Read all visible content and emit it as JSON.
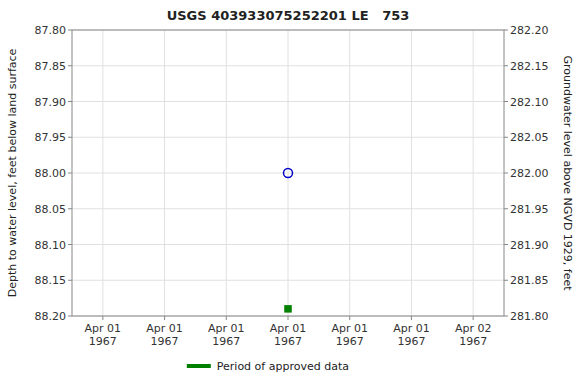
{
  "chart_data": {
    "type": "scatter",
    "title": "USGS 403933075252201 LE   753",
    "ylabel": "Depth to water level, feet below land surface",
    "y2label": "Groundwater level above NGVD 1929, feet",
    "categories": [
      "Apr 01\n1967",
      "Apr 01\n1967",
      "Apr 01\n1967",
      "Apr 01\n1967",
      "Apr 01\n1967",
      "Apr 01\n1967",
      "Apr 02\n1967"
    ],
    "series": [
      {
        "color": "#0000cc",
        "marker": "open-circle",
        "values": [
          null,
          null,
          null,
          88.0,
          null,
          null,
          null
        ]
      },
      {
        "name": "Period of approved data",
        "color": "#008000",
        "marker": "square",
        "values": [
          null,
          null,
          null,
          88.19,
          null,
          null,
          null
        ]
      }
    ],
    "ylim": [
      88.2,
      87.8
    ],
    "yticks": [
      {
        "value": 87.8,
        "label": "87.80"
      },
      87.85,
      {
        "value": 87.9,
        "label": "87.90"
      },
      87.95,
      {
        "value": 88.0,
        "label": "88.00"
      },
      88.05,
      {
        "value": 88.1,
        "label": "88.10"
      },
      88.15,
      {
        "value": 88.2,
        "label": "88.20"
      }
    ],
    "y2lim": [
      281.8,
      282.2
    ],
    "y2ticks": [
      {
        "value": 282.2,
        "label": "282.20"
      },
      282.15,
      {
        "value": 282.1,
        "label": "282.10"
      },
      282.05,
      {
        "value": 282.0,
        "label": "282.00"
      },
      281.95,
      {
        "value": 281.9,
        "label": "281.90"
      },
      281.85,
      {
        "value": 281.8,
        "label": "281.80"
      }
    ],
    "grid": true,
    "legend": "bottom"
  }
}
